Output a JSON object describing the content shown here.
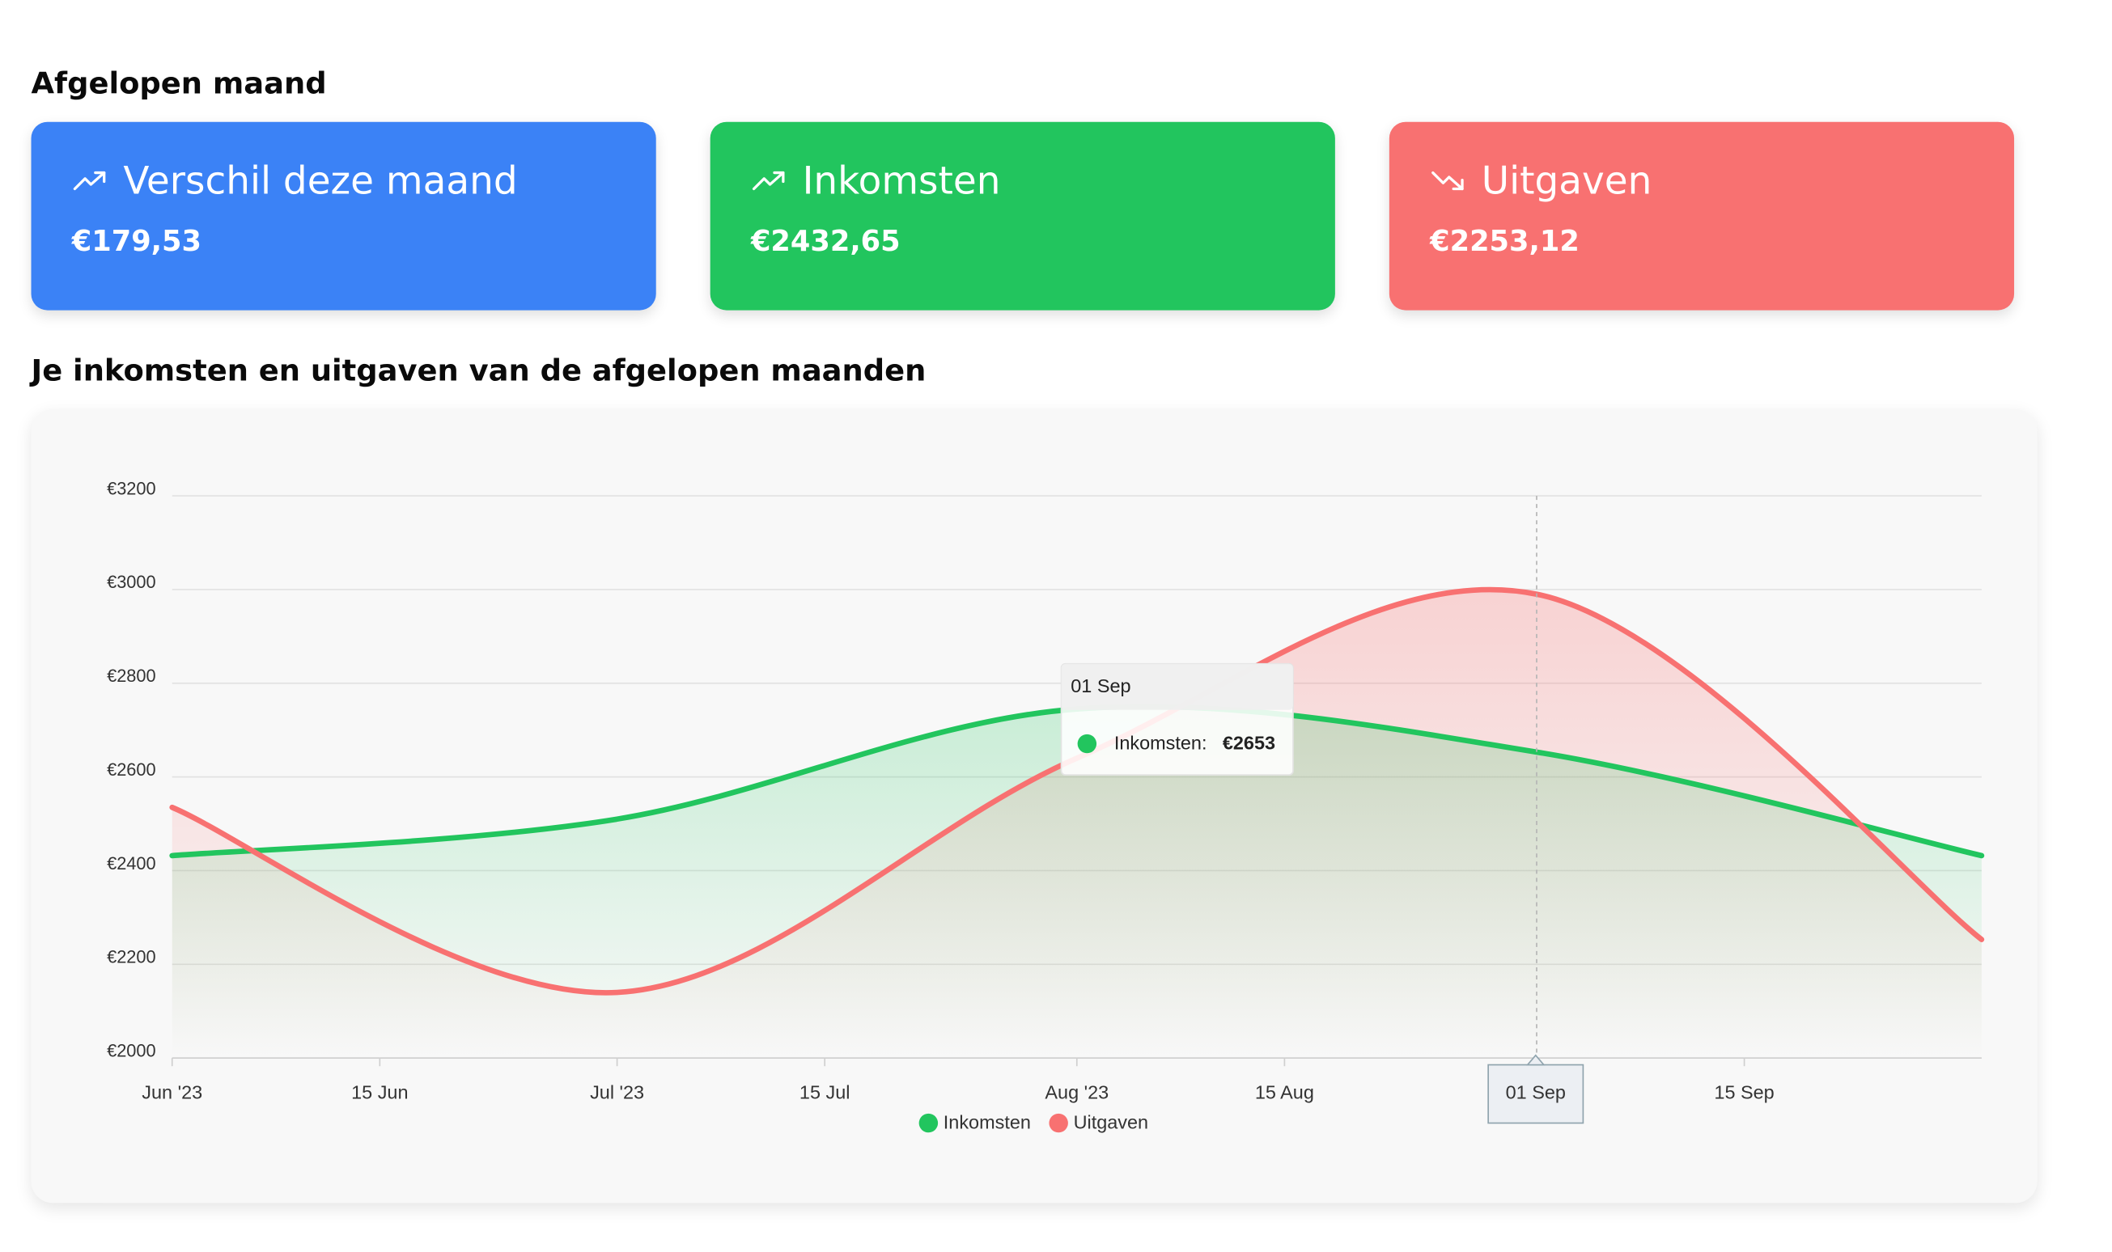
{
  "summary": {
    "heading": "Afgelopen maand",
    "cards": [
      {
        "title": "Verschil deze maand",
        "value": "€179,53",
        "trend": "up",
        "icon": "trending-up-icon",
        "color": "#3b82f6"
      },
      {
        "title": "Inkomsten",
        "value": "€2432,65",
        "trend": "up",
        "icon": "trending-up-icon",
        "color": "#22c55e"
      },
      {
        "title": "Uitgaven",
        "value": "€2253,12",
        "trend": "down",
        "icon": "trending-down-icon",
        "color": "#f87171"
      }
    ]
  },
  "chart_section": {
    "heading": "Je inkomsten en uitgaven van de afgelopen maanden"
  },
  "tooltip": {
    "date": "01 Sep",
    "series": "Inkomsten:",
    "value": "€2653"
  },
  "crosshair_label": "01 Sep",
  "chart_data": {
    "type": "area",
    "x_ticks": [
      "Jun '23",
      "15 Jun",
      "Jul '23",
      "15 Jul",
      "Aug '23",
      "15 Aug",
      "01 Sep",
      "15 Sep"
    ],
    "x": [
      "2023-06-01",
      "2023-07-01",
      "2023-08-01",
      "2023-09-01",
      "2023-10-01"
    ],
    "y_ticks": [
      "€2000",
      "€2200",
      "€2400",
      "€2600",
      "€2800",
      "€3000",
      "€3200"
    ],
    "ylim": [
      2000,
      3200
    ],
    "series": [
      {
        "name": "Inkomsten",
        "color": "#22c55e",
        "values": [
          2432,
          2510,
          2745,
          2653,
          2432
        ]
      },
      {
        "name": "Uitgaven",
        "color": "#f87171",
        "values": [
          2535,
          2140,
          2640,
          2990,
          2253
        ]
      }
    ],
    "legend": "bottom-center",
    "grid": true
  }
}
